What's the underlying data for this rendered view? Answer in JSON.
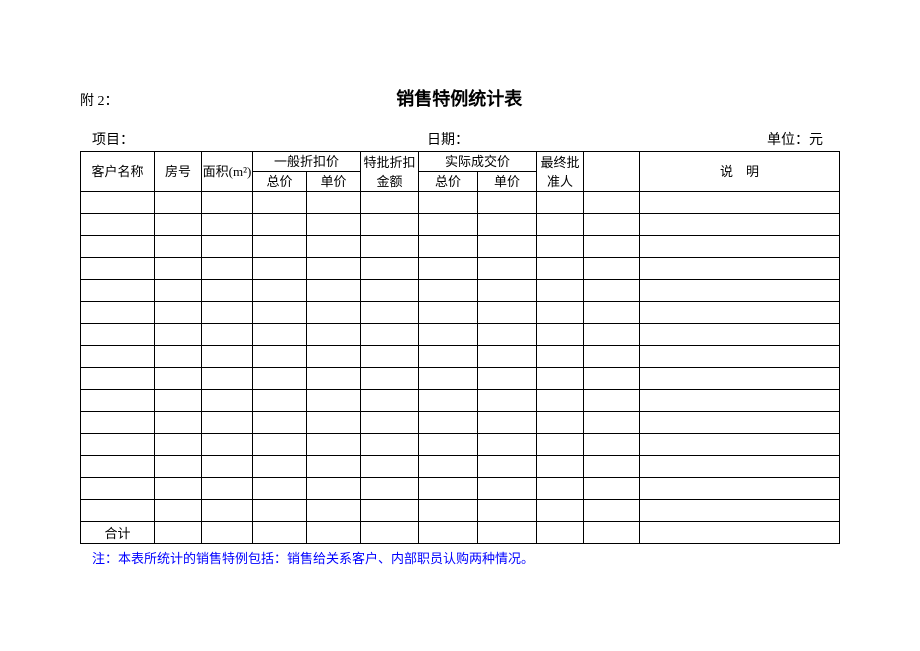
{
  "attachment": "附 2：",
  "title": "销售特例统计表",
  "meta": {
    "project_label": "项目：",
    "date_label": "日期：",
    "unit_label": "单位：元"
  },
  "columns": {
    "customer": "客户名称",
    "room": "房号",
    "area": "面积(m²)",
    "general_discount": "一般折扣价",
    "gen_total": "总价",
    "gen_unit": "单价",
    "special_discount": "特批折扣金额",
    "actual_price": "实际成交价",
    "act_total": "总价",
    "act_unit": "单价",
    "approver": "最终批准人",
    "remark": "说　明"
  },
  "data_rows": 15,
  "total_label": "合计",
  "footnote": "注：本表所统计的销售特例包括：销售给关系客户、内部职员认购两种情况。",
  "style": {
    "border_color": "#000000",
    "footnote_color": "#0000ff",
    "background": "#ffffff",
    "font_family": "SimSun"
  }
}
